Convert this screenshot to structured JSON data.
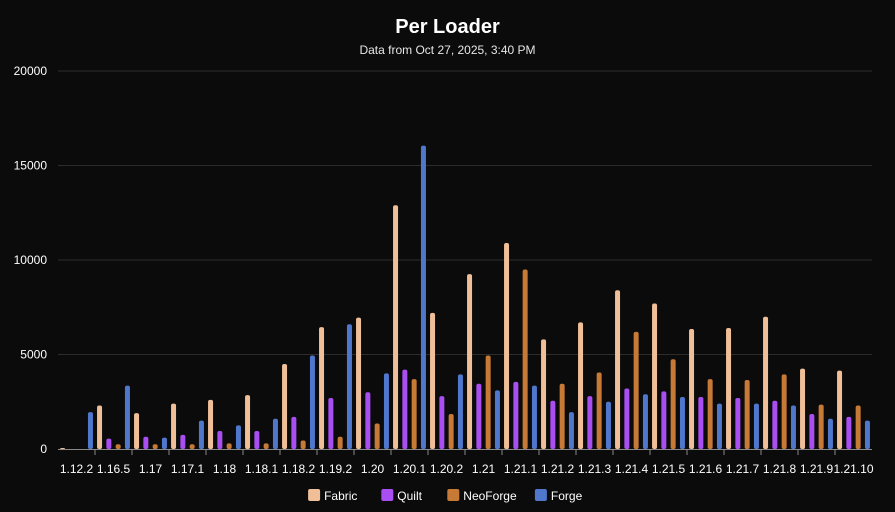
{
  "chart_data": {
    "type": "bar",
    "title": "Per Loader",
    "subtitle": "Data from Oct 27, 2025, 3:40 PM",
    "categories": [
      "1.12.2",
      "1.16.5",
      "1.17",
      "1.17.1",
      "1.18",
      "1.18.1",
      "1.18.2",
      "1.19.2",
      "1.20",
      "1.20.1",
      "1.20.2",
      "1.21",
      "1.21.1",
      "1.21.2",
      "1.21.3",
      "1.21.4",
      "1.21.5",
      "1.21.6",
      "1.21.7",
      "1.21.8",
      "1.21.9",
      "1.21.10"
    ],
    "ylim": [
      0,
      20000
    ],
    "yticks": [
      0,
      5000,
      10000,
      15000,
      20000
    ],
    "grid": true,
    "legend_position": "bottom",
    "series": [
      {
        "name": "Fabric",
        "color": "#f0bf98",
        "values": [
          50,
          2300,
          1900,
          2400,
          2600,
          2850,
          4500,
          6450,
          6950,
          12900,
          7200,
          9250,
          10900,
          5800,
          6700,
          8400,
          7700,
          6350,
          6400,
          7000,
          4250,
          4150
        ]
      },
      {
        "name": "Quilt",
        "color": "#a94ef0",
        "values": [
          0,
          550,
          650,
          750,
          950,
          950,
          1700,
          2700,
          3000,
          4200,
          2800,
          3450,
          3550,
          2550,
          2800,
          3200,
          3050,
          2750,
          2700,
          2550,
          1850,
          1700
        ]
      },
      {
        "name": "NeoForge",
        "color": "#c77a35",
        "values": [
          0,
          250,
          250,
          250,
          300,
          300,
          450,
          650,
          1350,
          3700,
          1850,
          4950,
          9500,
          3450,
          4050,
          6200,
          4750,
          3700,
          3650,
          3950,
          2350,
          2300
        ]
      },
      {
        "name": "Forge",
        "color": "#4f78cc",
        "values": [
          1950,
          3350,
          600,
          1500,
          1250,
          1600,
          4950,
          6600,
          4000,
          16050,
          3950,
          3100,
          3350,
          1950,
          2500,
          2900,
          2750,
          2400,
          2400,
          2300,
          1600,
          1500
        ]
      }
    ]
  }
}
